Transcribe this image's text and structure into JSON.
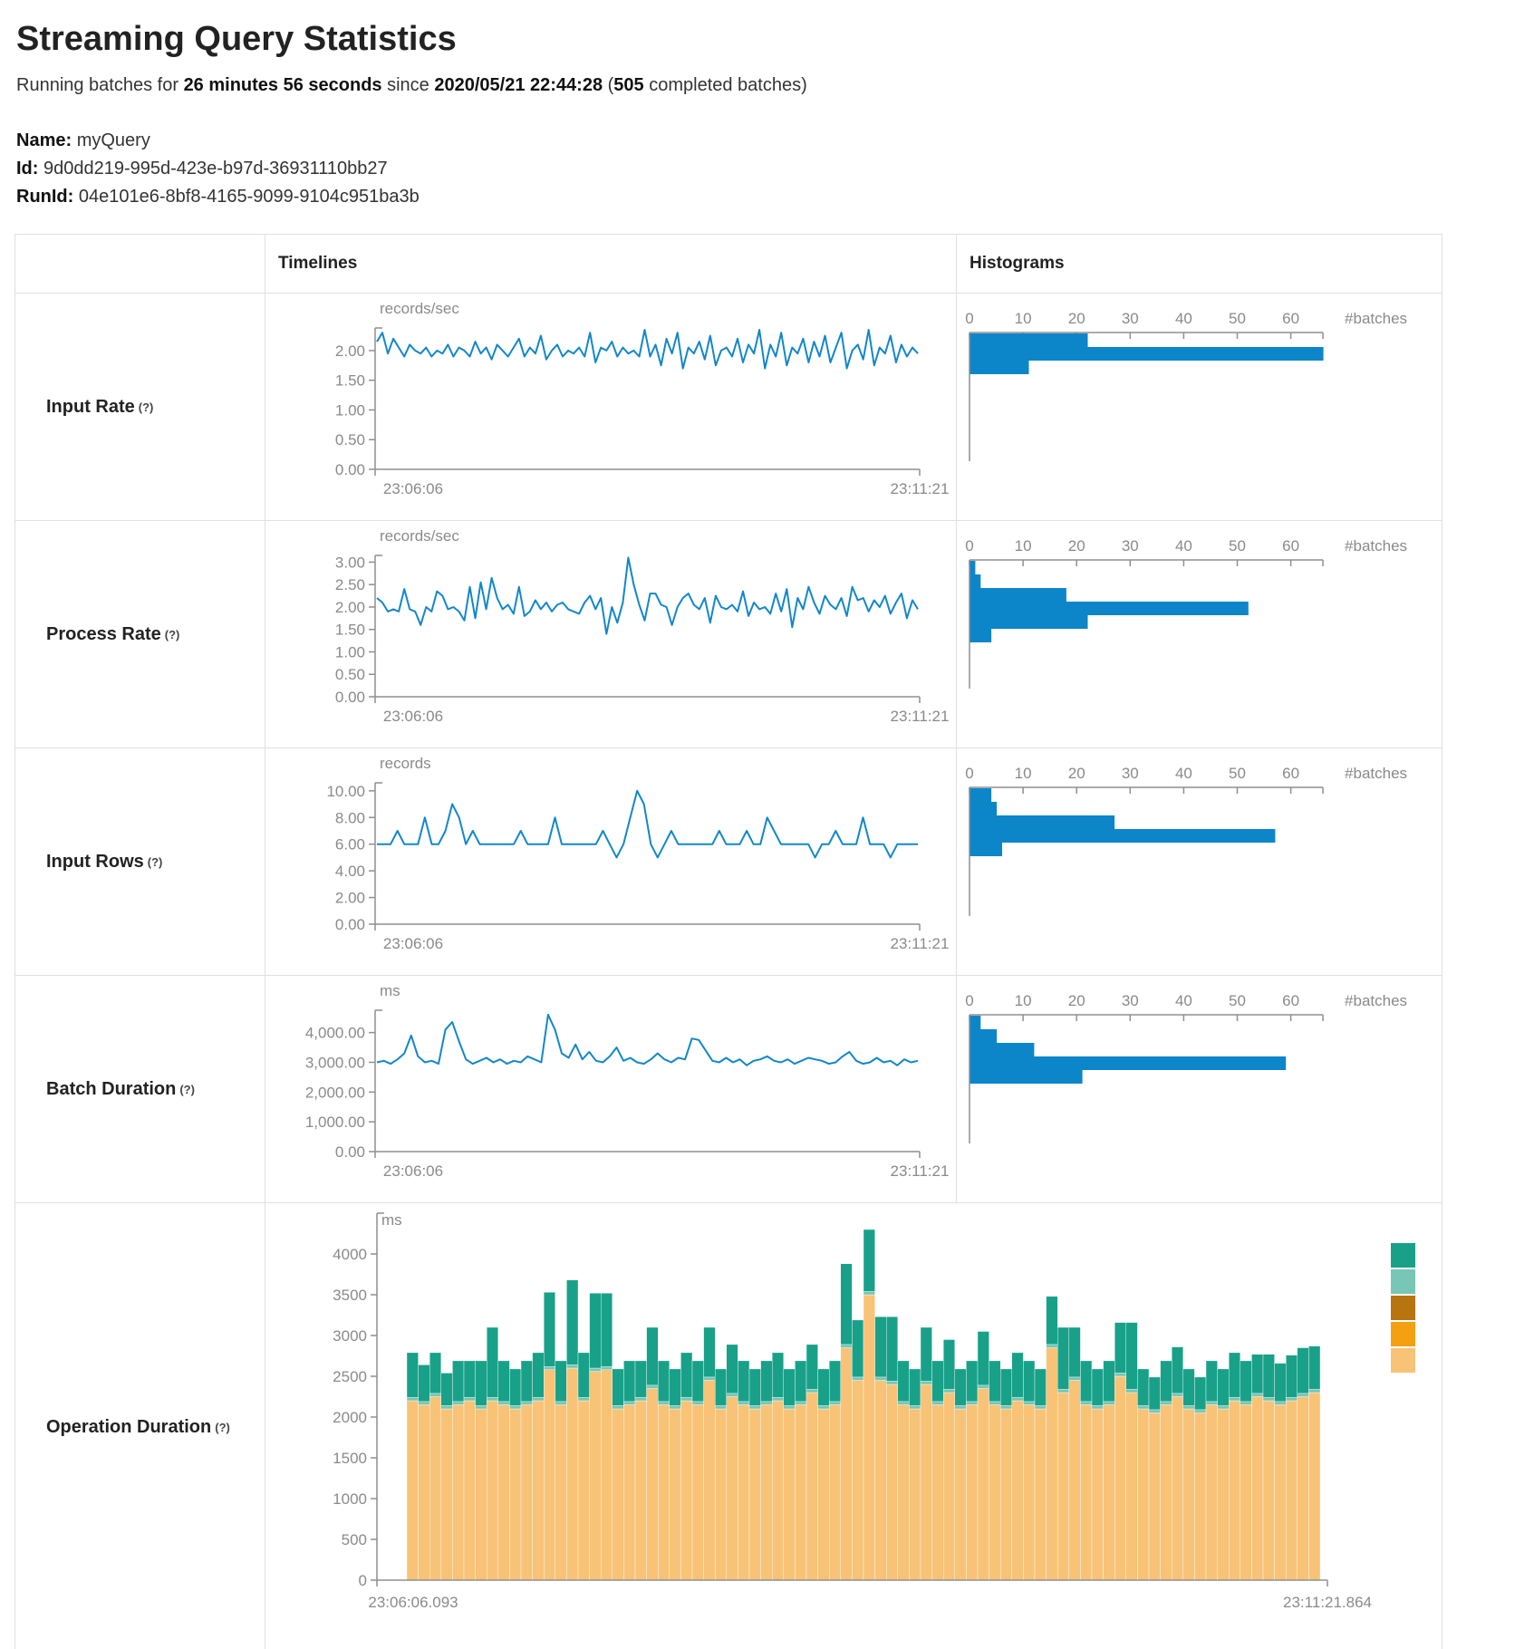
{
  "header": {
    "title": "Streaming Query Statistics",
    "running_prefix": "Running batches for ",
    "duration": "26 minutes 56 seconds",
    "since_word": " since ",
    "since_time": "2020/05/21 22:44:28",
    "open_paren": " (",
    "completed_count": "505",
    "completed_suffix": " completed batches)",
    "name_label": "Name:",
    "name_value": "myQuery",
    "id_label": "Id:",
    "id_value": "9d0dd219-995d-423e-b97d-36931110bb27",
    "runid_label": "RunId:",
    "runid_value": "04e101e6-8bf8-4165-9099-9104c951ba3b"
  },
  "ui": {
    "timelines_header": "Timelines",
    "histograms_header": "Histograms",
    "help_marker": "(?)"
  },
  "colors": {
    "bar_blue": "#0d86c9",
    "line_blue": "#1287c9",
    "axis_gray": "#8f8f8f",
    "text_gray": "#8a8a8a",
    "border_gray": "#e0e0e0"
  },
  "chart_data": [
    {
      "label": "Input Rate",
      "type": "line",
      "timeline": {
        "unit": "records/sec",
        "x_start": "23:06:06",
        "x_end": "23:11:21",
        "ymax": 2.38,
        "yticks": [
          {
            "v": 2,
            "t": "2.00"
          },
          {
            "v": 1.5,
            "t": "1.50"
          },
          {
            "v": 1,
            "t": "1.00"
          },
          {
            "v": 0.5,
            "t": "0.50"
          },
          {
            "v": 0,
            "t": "0.00"
          }
        ],
        "values": [
          2.15,
          2.3,
          1.95,
          2.2,
          2.05,
          1.9,
          2.1,
          2.0,
          1.95,
          2.05,
          1.9,
          2.0,
          1.95,
          2.1,
          1.9,
          2.05,
          2.0,
          1.9,
          2.15,
          1.95,
          2.05,
          1.85,
          2.1,
          2.0,
          1.9,
          2.05,
          2.2,
          1.9,
          2.05,
          1.95,
          2.25,
          1.85,
          2.0,
          2.1,
          1.9,
          2.0,
          1.95,
          2.05,
          1.9,
          2.3,
          1.8,
          2.05,
          2.0,
          2.15,
          1.9,
          2.05,
          1.95,
          2.0,
          1.9,
          2.35,
          1.9,
          2.1,
          1.75,
          2.2,
          1.95,
          2.3,
          1.7,
          2.05,
          1.95,
          2.15,
          1.85,
          2.25,
          1.75,
          2.0,
          2.05,
          1.9,
          2.2,
          1.8,
          2.1,
          1.95,
          2.35,
          1.7,
          2.1,
          1.9,
          2.3,
          1.75,
          2.05,
          1.95,
          2.2,
          1.8,
          2.15,
          1.9,
          2.25,
          1.8,
          2.05,
          2.3,
          1.7,
          2.0,
          2.1,
          1.85,
          2.35,
          1.75,
          2.05,
          1.95,
          2.25,
          1.8,
          2.1,
          1.9,
          2.05,
          1.95
        ]
      },
      "histogram": {
        "xticks": [
          0,
          10,
          20,
          30,
          40,
          50,
          60
        ],
        "axis_max": 66,
        "axis_label": "#batches",
        "bins": [
          22,
          66,
          11
        ]
      }
    },
    {
      "label": "Process Rate",
      "type": "line",
      "timeline": {
        "unit": "records/sec",
        "x_start": "23:06:06",
        "x_end": "23:11:21",
        "ymax": 3.15,
        "yticks": [
          {
            "v": 3,
            "t": "3.00"
          },
          {
            "v": 2.5,
            "t": "2.50"
          },
          {
            "v": 2,
            "t": "2.00"
          },
          {
            "v": 1.5,
            "t": "1.50"
          },
          {
            "v": 1,
            "t": "1.00"
          },
          {
            "v": 0.5,
            "t": "0.50"
          },
          {
            "v": 0,
            "t": "0.00"
          }
        ],
        "values": [
          2.2,
          2.1,
          1.9,
          1.95,
          1.9,
          2.4,
          1.95,
          1.9,
          1.6,
          2.0,
          1.9,
          2.35,
          2.25,
          1.95,
          2.0,
          1.9,
          1.7,
          2.45,
          1.75,
          2.55,
          1.95,
          2.65,
          2.2,
          1.95,
          2.05,
          1.85,
          2.45,
          1.8,
          1.9,
          2.15,
          1.95,
          2.1,
          1.9,
          2.05,
          2.1,
          1.95,
          1.9,
          1.85,
          2.1,
          2.25,
          1.95,
          2.2,
          1.4,
          2.0,
          1.65,
          2.1,
          3.1,
          2.5,
          2.05,
          1.7,
          2.3,
          2.3,
          2.05,
          2.0,
          1.6,
          2.0,
          2.2,
          2.3,
          2.05,
          1.95,
          2.2,
          1.65,
          2.25,
          2.0,
          1.95,
          2.05,
          1.9,
          2.35,
          1.8,
          2.1,
          1.95,
          2.0,
          1.85,
          2.3,
          1.9,
          2.4,
          1.55,
          2.2,
          1.95,
          2.45,
          2.1,
          1.85,
          2.25,
          2.05,
          1.95,
          2.2,
          1.8,
          2.45,
          2.15,
          2.2,
          1.9,
          2.15,
          2.0,
          2.25,
          1.85,
          2.1,
          2.3,
          1.75,
          2.15,
          1.95
        ]
      },
      "histogram": {
        "xticks": [
          0,
          10,
          20,
          30,
          40,
          50,
          60
        ],
        "axis_max": 66,
        "axis_label": "#batches",
        "bins": [
          1,
          2,
          18,
          52,
          22,
          4
        ]
      }
    },
    {
      "label": "Input Rows",
      "type": "line",
      "timeline": {
        "unit": "records",
        "x_start": "23:06:06",
        "x_end": "23:11:21",
        "ymax": 10.6,
        "yticks": [
          {
            "v": 10,
            "t": "10.00"
          },
          {
            "v": 8,
            "t": "8.00"
          },
          {
            "v": 6,
            "t": "6.00"
          },
          {
            "v": 4,
            "t": "4.00"
          },
          {
            "v": 2,
            "t": "2.00"
          },
          {
            "v": 0,
            "t": "0.00"
          }
        ],
        "values": [
          6,
          6,
          6,
          7,
          6,
          6,
          6,
          8,
          6,
          6,
          7,
          9,
          8,
          6,
          7,
          6,
          6,
          6,
          6,
          6,
          6,
          7,
          6,
          6,
          6,
          6,
          8,
          6,
          6,
          6,
          6,
          6,
          6,
          7,
          6,
          5,
          6,
          8,
          10,
          9,
          6,
          5,
          6,
          7,
          6,
          6,
          6,
          6,
          6,
          6,
          7,
          6,
          6,
          6,
          7,
          6,
          6,
          8,
          7,
          6,
          6,
          6,
          6,
          6,
          5,
          6,
          6,
          7,
          6,
          6,
          6,
          8,
          6,
          6,
          6,
          5,
          6,
          6,
          6,
          6
        ]
      },
      "histogram": {
        "xticks": [
          0,
          10,
          20,
          30,
          40,
          50,
          60
        ],
        "axis_max": 66,
        "axis_label": "#batches",
        "bins": [
          4,
          5,
          27,
          57,
          6
        ]
      }
    },
    {
      "label": "Batch Duration",
      "type": "line",
      "timeline": {
        "unit": "ms",
        "x_start": "23:06:06",
        "x_end": "23:11:21",
        "ymax": 4750,
        "yticks": [
          {
            "v": 4000,
            "t": "4,000.00"
          },
          {
            "v": 3000,
            "t": "3,000.00"
          },
          {
            "v": 2000,
            "t": "2,000.00"
          },
          {
            "v": 1000,
            "t": "1,000.00"
          },
          {
            "v": 0,
            "t": "0.00"
          }
        ],
        "values": [
          3000,
          3050,
          2950,
          3100,
          3300,
          3900,
          3200,
          3000,
          3050,
          2950,
          4100,
          4350,
          3700,
          3100,
          2950,
          3050,
          3150,
          3000,
          3100,
          2950,
          3050,
          3000,
          3200,
          3100,
          3000,
          4600,
          4100,
          3300,
          3150,
          3600,
          3100,
          3350,
          3050,
          3000,
          3200,
          3500,
          3050,
          3150,
          3000,
          2950,
          3100,
          3300,
          3100,
          3000,
          3150,
          3100,
          3800,
          3750,
          3400,
          3050,
          3000,
          3150,
          3000,
          3100,
          2900,
          3050,
          3100,
          3200,
          3050,
          3000,
          3100,
          2950,
          3050,
          3150,
          3100,
          3050,
          2950,
          3000,
          3200,
          3350,
          3050,
          2950,
          3000,
          3150,
          3000,
          3050,
          2900,
          3100,
          3000,
          3050
        ]
      },
      "histogram": {
        "xticks": [
          0,
          10,
          20,
          30,
          40,
          50,
          60
        ],
        "axis_max": 66,
        "axis_label": "#batches",
        "bins": [
          2,
          5,
          12,
          59,
          21
        ]
      }
    },
    {
      "label": "Operation Duration",
      "type": "stacked-bar",
      "unit": "ms",
      "x_start": "23:06:06.093",
      "x_end": "23:11:21.864",
      "ymax": 4500,
      "yticks": [
        {
          "v": 4000,
          "t": "4000"
        },
        {
          "v": 3500,
          "t": "3500"
        },
        {
          "v": 3000,
          "t": "3000"
        },
        {
          "v": 2500,
          "t": "2500"
        },
        {
          "v": 2000,
          "t": "2000"
        },
        {
          "v": 1500,
          "t": "1500"
        },
        {
          "v": 1000,
          "t": "1000"
        },
        {
          "v": 500,
          "t": "500"
        },
        {
          "v": 0,
          "t": "0"
        }
      ],
      "legend_colors": [
        "#18a188",
        "#77c6b6",
        "#b8740f",
        "#f5a011",
        "#f8c377"
      ],
      "series": [
        {
          "name": "bottom-tan",
          "color": "#f8c377",
          "values": [
            2200,
            2150,
            2250,
            2100,
            2150,
            2200,
            2100,
            2200,
            2150,
            2100,
            2150,
            2200,
            2580,
            2150,
            2600,
            2200,
            2560,
            2580,
            2100,
            2150,
            2200,
            2350,
            2150,
            2100,
            2200,
            2150,
            2450,
            2100,
            2250,
            2150,
            2100,
            2150,
            2200,
            2100,
            2150,
            2300,
            2100,
            2150,
            2850,
            2450,
            3500,
            2450,
            2400,
            2150,
            2100,
            2400,
            2150,
            2300,
            2100,
            2150,
            2350,
            2150,
            2100,
            2200,
            2150,
            2100,
            2850,
            2300,
            2450,
            2150,
            2100,
            2150,
            2500,
            2300,
            2100,
            2050,
            2150,
            2250,
            2100,
            2050,
            2150,
            2100,
            2200,
            2150,
            2250,
            2200,
            2150,
            2200,
            2250,
            2300
          ]
        },
        {
          "name": "middle-light-teal",
          "color": "#77c6b6",
          "constant": 40
        },
        {
          "name": "top-teal",
          "color": "#18a188",
          "values": [
            550,
            450,
            500,
            400,
            500,
            450,
            550,
            860,
            500,
            450,
            500,
            550,
            910,
            500,
            1040,
            550,
            920,
            900,
            450,
            500,
            450,
            710,
            500,
            450,
            550,
            500,
            610,
            450,
            600,
            500,
            450,
            500,
            550,
            450,
            500,
            550,
            450,
            500,
            990,
            700,
            760,
            740,
            790,
            500,
            450,
            660,
            500,
            610,
            450,
            500,
            660,
            500,
            450,
            550,
            500,
            450,
            590,
            760,
            610,
            500,
            450,
            500,
            620,
            820,
            450,
            400,
            500,
            570,
            450,
            400,
            500,
            450,
            550,
            500,
            480,
            530,
            470,
            520,
            560,
            530
          ]
        }
      ]
    }
  ]
}
